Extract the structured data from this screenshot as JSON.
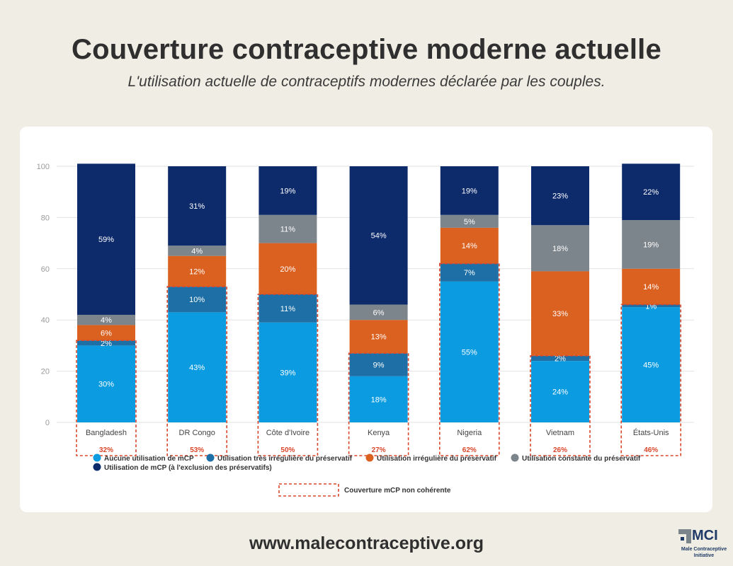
{
  "header": {
    "title": "Couverture contraceptive moderne actuelle",
    "subtitle": "L'utilisation actuelle de contraceptifs modernes déclarée par les couples."
  },
  "footer": {
    "url": "www.malecontraceptive.org",
    "logo_text": "MCI",
    "logo_sub_line1": "Male Contraceptive",
    "logo_sub_line2": "Initiative"
  },
  "colors": {
    "aucune": "#0a9be0",
    "tres_irreg": "#1d6fa5",
    "irreg": "#db6120",
    "constante": "#7c858c",
    "mcp": "#0d2b6b",
    "dashed": "#d9472b"
  },
  "chart_data": {
    "type": "stacked-bar",
    "categories": [
      "Bangladesh",
      "DR Congo",
      "Côte d'Ivoire",
      "Kenya",
      "Nigeria",
      "Vietnam",
      "États-Unis"
    ],
    "ylim": [
      0,
      100
    ],
    "yticks": [
      0,
      20,
      40,
      60,
      80,
      100
    ],
    "series": [
      {
        "key": "aucune",
        "name": "Aucune utilisation de mCP",
        "values": [
          30,
          43,
          39,
          18,
          55,
          24,
          45
        ],
        "labels": [
          "30%",
          "43%",
          "39%",
          "18%",
          "55%",
          "24%",
          "45%"
        ]
      },
      {
        "key": "tres_irreg",
        "name": "Utilisation très irrégulière du préservatif",
        "values": [
          2,
          10,
          11,
          9,
          7,
          2,
          1
        ],
        "labels": [
          "2%",
          "10%",
          "11%",
          "9%",
          "7%",
          "2%",
          "1%"
        ]
      },
      {
        "key": "irreg",
        "name": "Utilisation irrégulière du préservatif",
        "values": [
          6,
          12,
          20,
          13,
          14,
          33,
          14
        ],
        "labels": [
          "6%",
          "12%",
          "20%",
          "13%",
          "14%",
          "33%",
          "14%"
        ]
      },
      {
        "key": "constante",
        "name": "Utilisation constante du préservatif",
        "values": [
          4,
          4,
          11,
          6,
          5,
          18,
          19
        ],
        "labels": [
          "4%",
          "4%",
          "11%",
          "6%",
          "5%",
          "18%",
          "19%"
        ]
      },
      {
        "key": "mcp",
        "name": "Utilisation de mCP (à l'exclusion des préservatifs)",
        "values": [
          59,
          31,
          19,
          54,
          19,
          23,
          22
        ],
        "labels": [
          "59%",
          "31%",
          "19%",
          "54%",
          "19%",
          "23%",
          "22%"
        ]
      }
    ],
    "incoherent_coverage": {
      "name": "Couverture mCP non cohérente",
      "values": [
        32,
        53,
        50,
        27,
        62,
        26,
        46
      ],
      "labels": [
        "32%",
        "53%",
        "50%",
        "27%",
        "62%",
        "26%",
        "46%"
      ]
    }
  }
}
